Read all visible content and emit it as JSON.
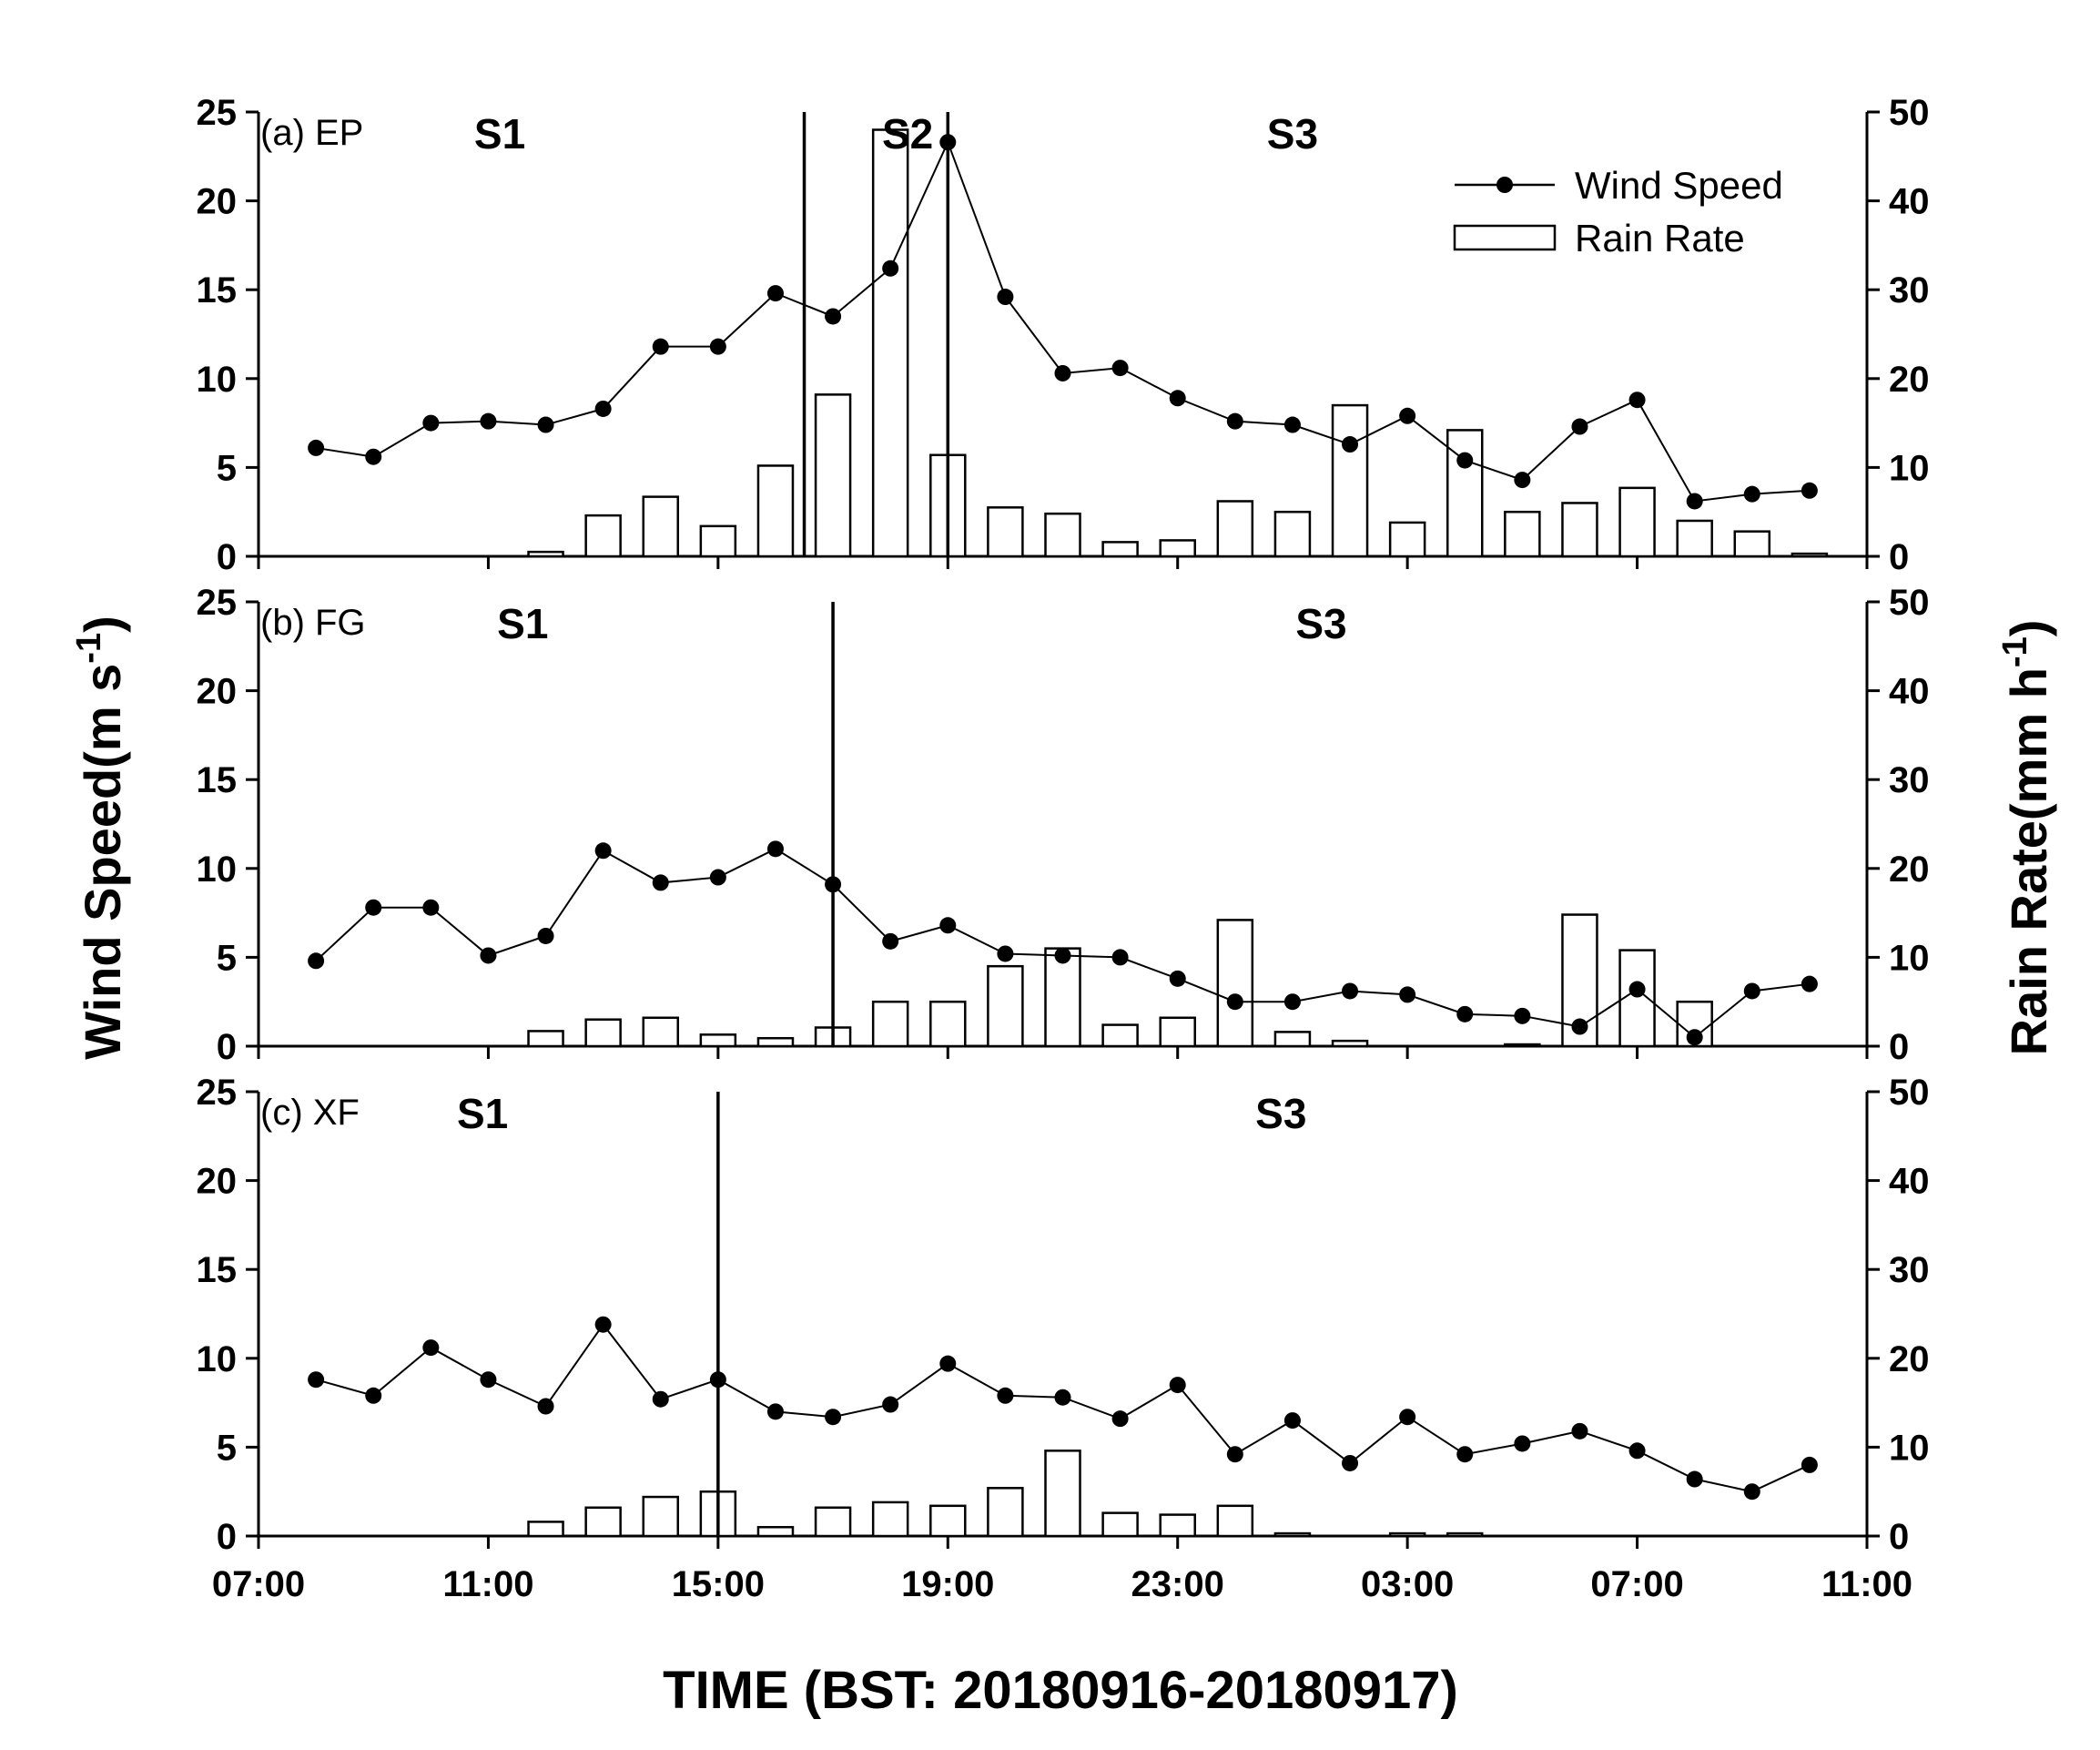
{
  "chart_data": {
    "type": "combined bar + line (3 stacked panels, dual y-axes)",
    "xlabel": "TIME (BST: 20180916-20180917)",
    "x_ticks": [
      "07:00",
      "11:00",
      "15:00",
      "19:00",
      "23:00",
      "03:00",
      "07:00",
      "11:00"
    ],
    "x_range_hours": [
      0,
      28
    ],
    "ylabel_left": {
      "main": "Wind Speed(m s",
      "sup": "-1",
      "close": ")"
    },
    "ylabel_right": {
      "main": "Rain Rate(mm h",
      "sup": "-1",
      "close": ")"
    },
    "y_left_range": [
      0,
      25
    ],
    "y_left_ticks": [
      "0",
      "5",
      "10",
      "15",
      "20",
      "25"
    ],
    "y_right_range": [
      0,
      50
    ],
    "y_right_ticks": [
      "0",
      "10",
      "20",
      "30",
      "40",
      "50"
    ],
    "legend": {
      "position": "top-right of panel (a)",
      "wind": "Wind Speed",
      "rain": "Rain Rate"
    },
    "hours": [
      1,
      2,
      3,
      4,
      5,
      6,
      7,
      8,
      9,
      10,
      11,
      12,
      13,
      14,
      15,
      16,
      17,
      18,
      19,
      20,
      21,
      22,
      23,
      24,
      25,
      26,
      27
    ],
    "panels": [
      {
        "id": "a",
        "label": "(a) EP",
        "stages": [
          {
            "name": "S1",
            "at": 4.2
          },
          {
            "name": "S2",
            "at": 11.3
          },
          {
            "name": "S3",
            "at": 18.0
          }
        ],
        "dividers": [
          9.5,
          12.0
        ],
        "wind_speed": [
          6.1,
          5.6,
          7.5,
          7.6,
          7.4,
          8.3,
          11.8,
          11.8,
          14.8,
          13.5,
          16.2,
          23.3,
          14.6,
          10.3,
          10.6,
          8.9,
          7.6,
          7.4,
          6.3,
          7.9,
          5.4,
          4.3,
          7.3,
          8.8,
          3.1,
          3.5,
          3.7
        ],
        "rain_rate": [
          0,
          0,
          0,
          0,
          0.5,
          4.6,
          6.7,
          3.4,
          10.2,
          18.2,
          48,
          11.4,
          5.5,
          4.8,
          1.6,
          1.8,
          6.2,
          5.0,
          17,
          3.8,
          14.2,
          5.0,
          6.0,
          7.7,
          4.0,
          2.8,
          0.3
        ]
      },
      {
        "id": "b",
        "label": "(b) FG",
        "stages": [
          {
            "name": "S1",
            "at": 4.6
          },
          {
            "name": "S3",
            "at": 18.5
          }
        ],
        "dividers": [
          10.0
        ],
        "wind_speed": [
          4.8,
          7.8,
          7.8,
          5.1,
          6.2,
          11.0,
          9.2,
          9.5,
          11.1,
          9.1,
          5.9,
          6.8,
          5.2,
          5.1,
          5.0,
          3.8,
          2.5,
          2.5,
          3.1,
          2.9,
          1.8,
          1.7,
          1.1,
          3.2,
          0.5,
          3.1,
          3.5
        ],
        "rain_rate": [
          0,
          0,
          0,
          0,
          1.7,
          3.0,
          3.2,
          1.3,
          0.9,
          2.1,
          5.0,
          5.0,
          9.0,
          11.0,
          2.4,
          3.2,
          14.2,
          1.6,
          0.6,
          0,
          0,
          0.2,
          14.8,
          10.8,
          5.0,
          0,
          0
        ]
      },
      {
        "id": "c",
        "label": "(c) XF",
        "stages": [
          {
            "name": "S1",
            "at": 3.9
          },
          {
            "name": "S3",
            "at": 17.8
          }
        ],
        "dividers": [
          8.0
        ],
        "wind_speed": [
          8.8,
          7.9,
          10.6,
          8.8,
          7.3,
          11.9,
          7.7,
          8.8,
          7.0,
          6.7,
          7.4,
          9.7,
          7.9,
          7.8,
          6.6,
          8.5,
          4.6,
          6.5,
          4.1,
          6.7,
          4.6,
          5.2,
          5.9,
          4.8,
          3.2,
          2.5,
          4.0
        ],
        "rain_rate": [
          0,
          0,
          0,
          0,
          1.6,
          3.2,
          4.4,
          5.0,
          1.0,
          3.2,
          3.8,
          3.4,
          5.4,
          9.6,
          2.6,
          2.4,
          3.4,
          0.3,
          0,
          0.3,
          0.3,
          0,
          0,
          0,
          0,
          0,
          0
        ]
      }
    ]
  }
}
